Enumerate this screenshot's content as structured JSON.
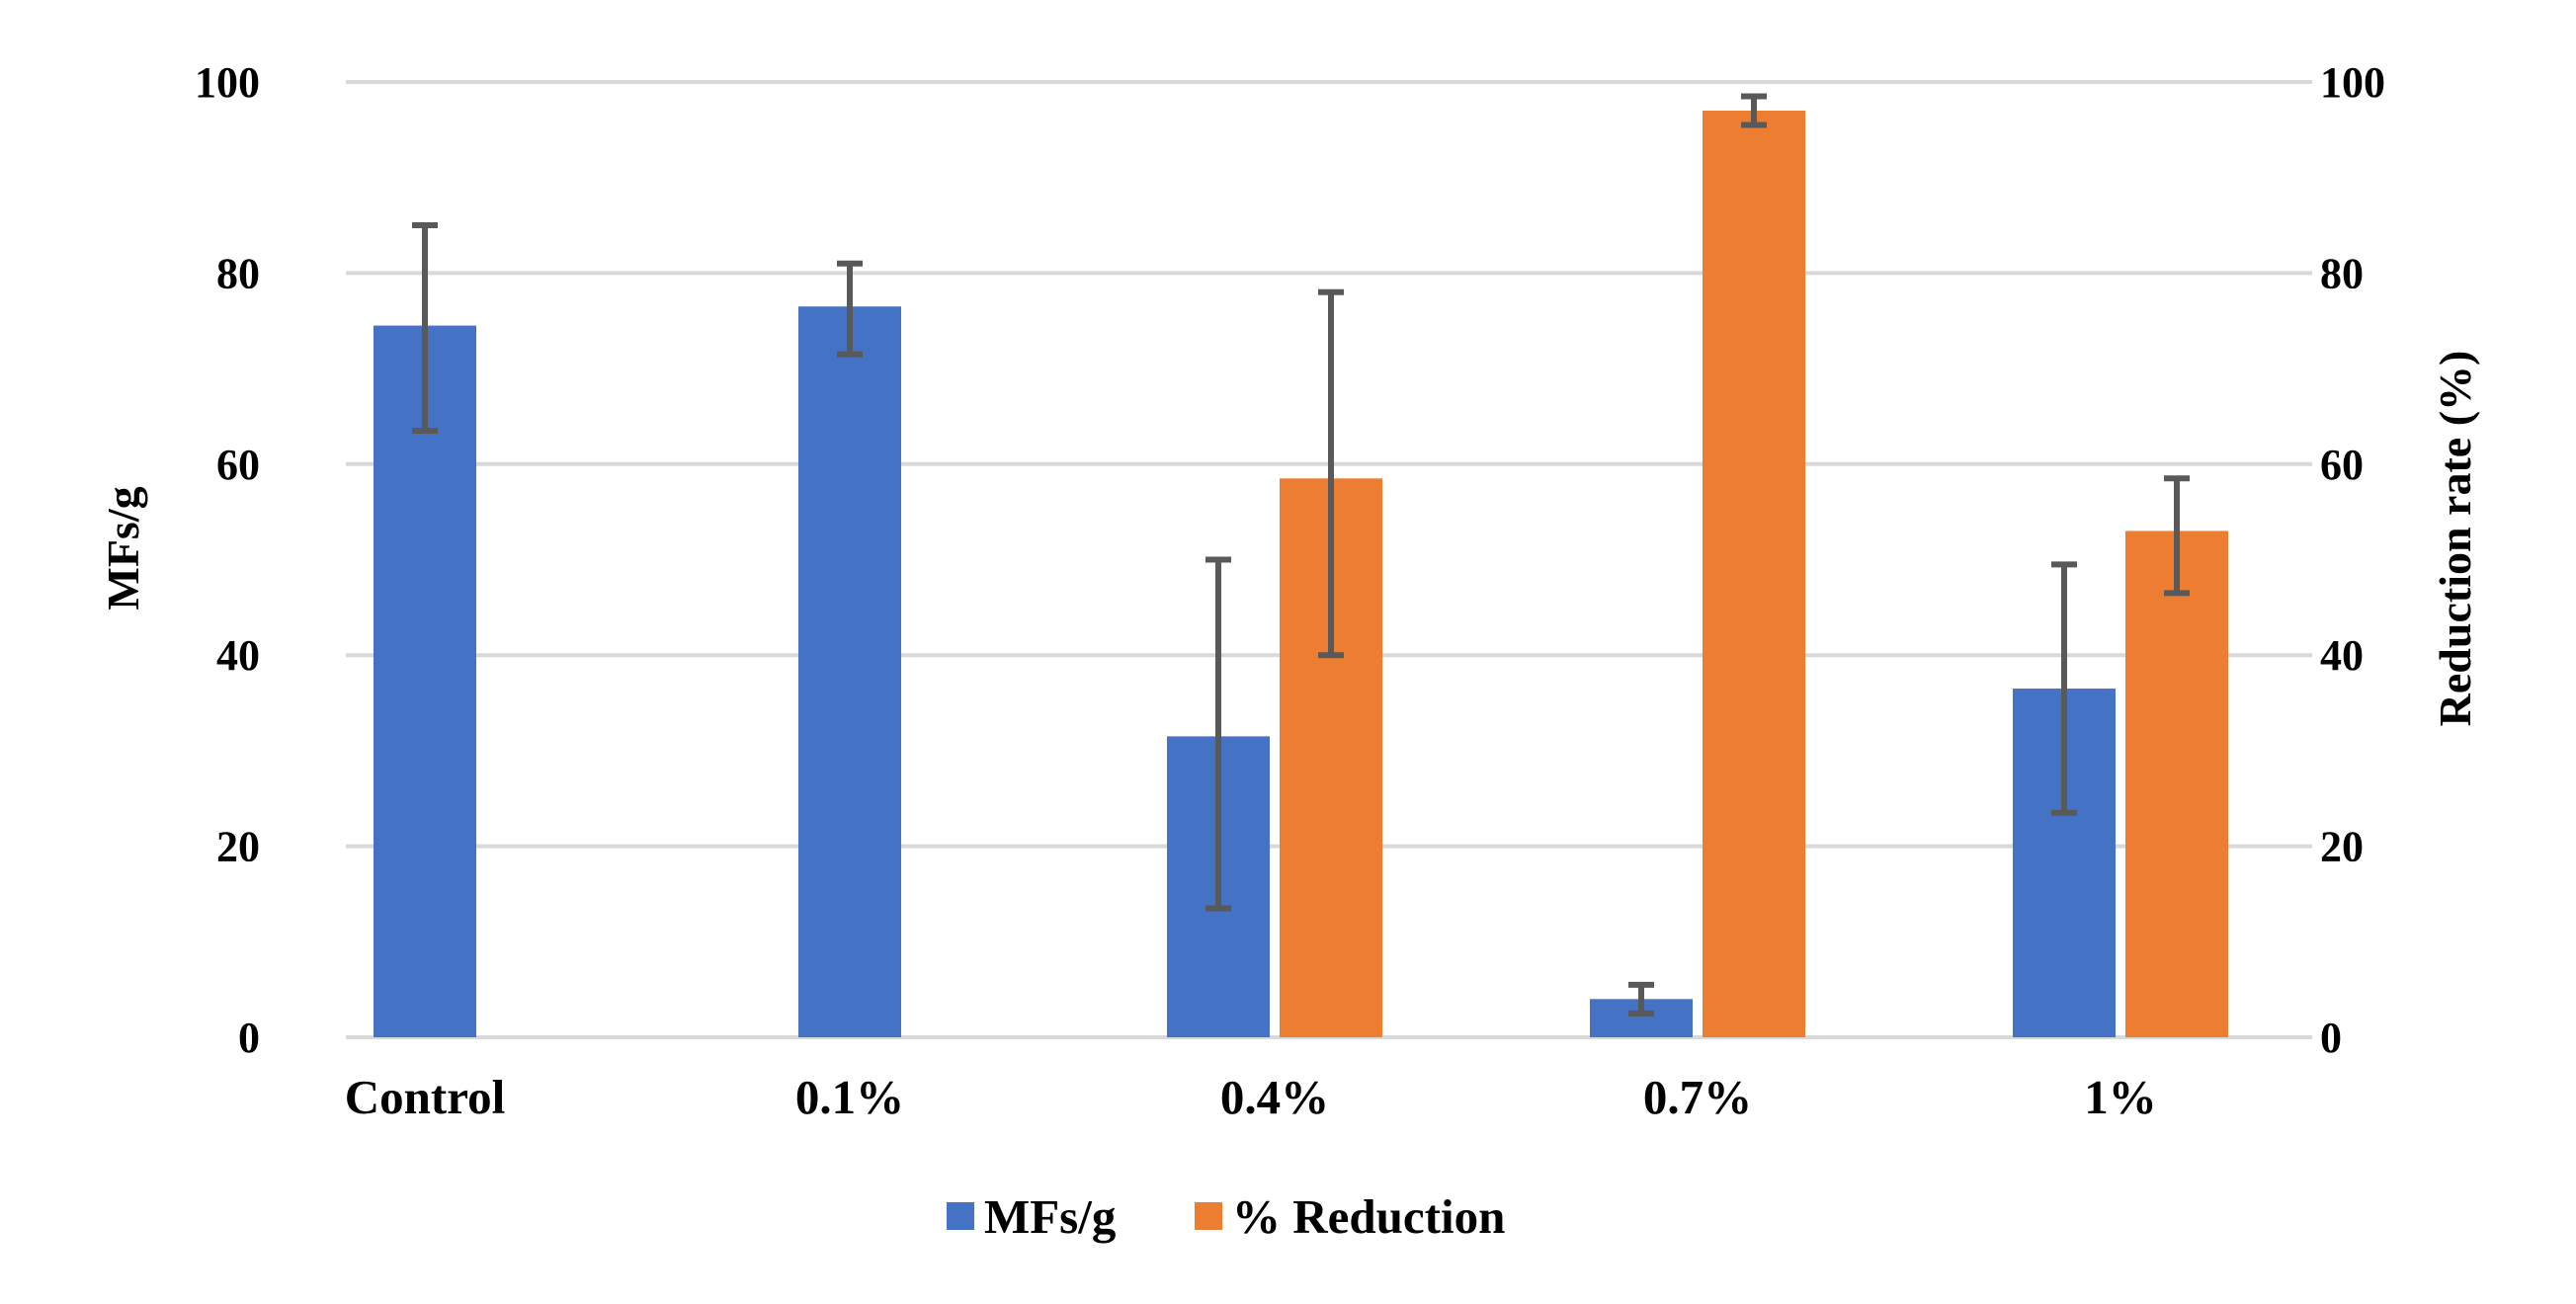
{
  "chart_data": {
    "type": "bar",
    "categories": [
      "Control",
      "0.1%",
      "0.4%",
      "0.7%",
      "1%"
    ],
    "series": [
      {
        "name": "MFs/g",
        "axis": "left",
        "color": "#4472c4",
        "values": [
          74.5,
          76.5,
          31.5,
          4,
          36.5
        ],
        "error_low": [
          63.5,
          71.5,
          13.5,
          2.5,
          23.5
        ],
        "error_high": [
          85,
          81,
          50,
          5.5,
          49.5
        ]
      },
      {
        "name": "% Reduction",
        "axis": "right",
        "color": "#ed7d31",
        "values": [
          null,
          null,
          58.5,
          97,
          53
        ],
        "error_low": [
          null,
          null,
          40,
          95.5,
          46.5
        ],
        "error_high": [
          null,
          null,
          78,
          98.5,
          58.5
        ]
      }
    ],
    "ylabel": "MFs/g",
    "y2label": "Reduction rate (%)",
    "ylim": [
      0,
      100
    ],
    "y2lim": [
      0,
      100
    ],
    "yticks": [
      "0",
      "20",
      "40",
      "60",
      "80",
      "100"
    ],
    "y2ticks": [
      "0",
      "20",
      "40",
      "60",
      "80",
      "100"
    ],
    "grid": true,
    "legend": "bottom-center"
  }
}
